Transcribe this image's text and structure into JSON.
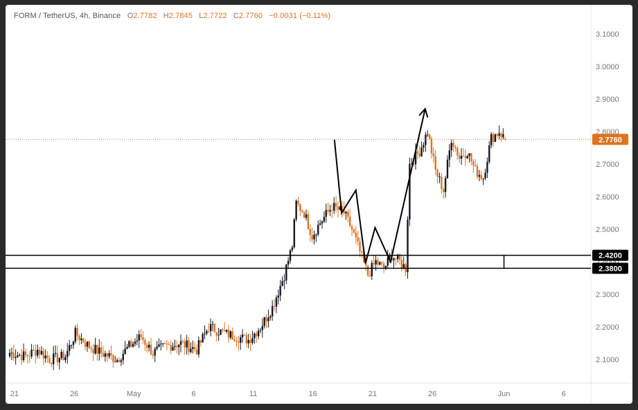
{
  "legend": {
    "symbol": "FORM / TetherUS, 4h, Binance",
    "open_key": "O",
    "open": "2.7782",
    "high_key": "H",
    "high": "2.7845",
    "low_key": "L",
    "low": "2.7722",
    "close_key": "C",
    "close": "2.7760",
    "change": "−0.0031 (−0.11%)"
  },
  "colors": {
    "up": "#131722",
    "down": "#e0731f",
    "price_line": "#e0731f",
    "level_line": "#000000",
    "axis_text": "#777777"
  },
  "chart_data": {
    "type": "candlestick",
    "title": "",
    "xlabel": "",
    "ylabel": "",
    "grid": false,
    "ylim": [
      2.04,
      3.12
    ],
    "y_ticks": [
      {
        "value": 2.1,
        "label": "2.1000"
      },
      {
        "value": 2.2,
        "label": "2.2000"
      },
      {
        "value": 2.3,
        "label": "2.3000"
      },
      {
        "value": 2.4,
        "label": "2.4000"
      },
      {
        "value": 2.5,
        "label": "2.5000"
      },
      {
        "value": 2.6,
        "label": "2.6000"
      },
      {
        "value": 2.7,
        "label": "2.7000"
      },
      {
        "value": 2.8,
        "label": "2.8000"
      },
      {
        "value": 2.9,
        "label": "2.9000"
      },
      {
        "value": 3.0,
        "label": "3.0000"
      },
      {
        "value": 3.1,
        "label": "3.1000"
      }
    ],
    "x_range_days": [
      20.6,
      41.0
    ],
    "x_ticks": [
      {
        "day": 21,
        "label": "21"
      },
      {
        "day": 26,
        "label": "26"
      },
      {
        "day": 31,
        "label": "May"
      },
      {
        "day": 36,
        "label": "6"
      },
      {
        "day": 41,
        "label": "11"
      },
      {
        "day": 46,
        "label": "16"
      },
      {
        "day": 51,
        "label": "21"
      },
      {
        "day": 56,
        "label": "26"
      },
      {
        "day": 62,
        "label": "Jun"
      },
      {
        "day": 67,
        "label": "6"
      }
    ],
    "x_visible_days": [
      20.6,
      68.7
    ],
    "candles_per_day": 6,
    "start_day": 20.6,
    "close_path": [
      [
        0,
        2.12
      ],
      [
        8,
        2.11
      ],
      [
        14,
        2.13
      ],
      [
        20,
        2.1
      ],
      [
        28,
        2.11
      ],
      [
        33,
        2.18
      ],
      [
        40,
        2.14
      ],
      [
        46,
        2.12
      ],
      [
        54,
        2.1
      ],
      [
        60,
        2.14
      ],
      [
        66,
        2.17
      ],
      [
        72,
        2.12
      ],
      [
        78,
        2.14
      ],
      [
        86,
        2.15
      ],
      [
        94,
        2.13
      ],
      [
        100,
        2.2
      ],
      [
        108,
        2.18
      ],
      [
        114,
        2.17
      ],
      [
        120,
        2.16
      ],
      [
        126,
        2.2
      ],
      [
        132,
        2.26
      ],
      [
        138,
        2.36
      ],
      [
        142,
        2.45
      ],
      [
        144,
        2.58
      ],
      [
        148,
        2.55
      ],
      [
        152,
        2.48
      ],
      [
        156,
        2.52
      ],
      [
        162,
        2.57
      ],
      [
        168,
        2.55
      ],
      [
        172,
        2.5
      ],
      [
        176,
        2.43
      ],
      [
        180,
        2.36
      ],
      [
        184,
        2.4
      ],
      [
        188,
        2.38
      ],
      [
        192,
        2.42
      ],
      [
        196,
        2.4
      ],
      [
        199,
        2.38
      ],
      [
        201,
        2.7
      ],
      [
        206,
        2.74
      ],
      [
        210,
        2.8
      ],
      [
        214,
        2.68
      ],
      [
        218,
        2.62
      ],
      [
        222,
        2.78
      ],
      [
        226,
        2.72
      ],
      [
        230,
        2.74
      ],
      [
        234,
        2.68
      ],
      [
        238,
        2.66
      ],
      [
        242,
        2.78
      ],
      [
        246,
        2.8
      ],
      [
        249,
        2.776
      ]
    ],
    "last": {
      "open": 2.7782,
      "high": 2.7845,
      "low": 2.7722,
      "close": 2.776
    },
    "horizontal_levels": [
      {
        "value": 2.42,
        "label": "2.4200"
      },
      {
        "value": 2.38,
        "label": "2.3800"
      }
    ],
    "level_tick_day": 62,
    "last_price": {
      "value": 2.776,
      "label": "2.7760"
    },
    "projection": [
      {
        "day": 47.8,
        "value": 2.775
      },
      {
        "day": 48.4,
        "value": 2.55
      },
      {
        "day": 49.6,
        "value": 2.62
      },
      {
        "day": 50.4,
        "value": 2.395
      },
      {
        "day": 51.2,
        "value": 2.505
      },
      {
        "day": 52.5,
        "value": 2.4
      },
      {
        "day": 55.4,
        "value": 2.87
      }
    ]
  }
}
